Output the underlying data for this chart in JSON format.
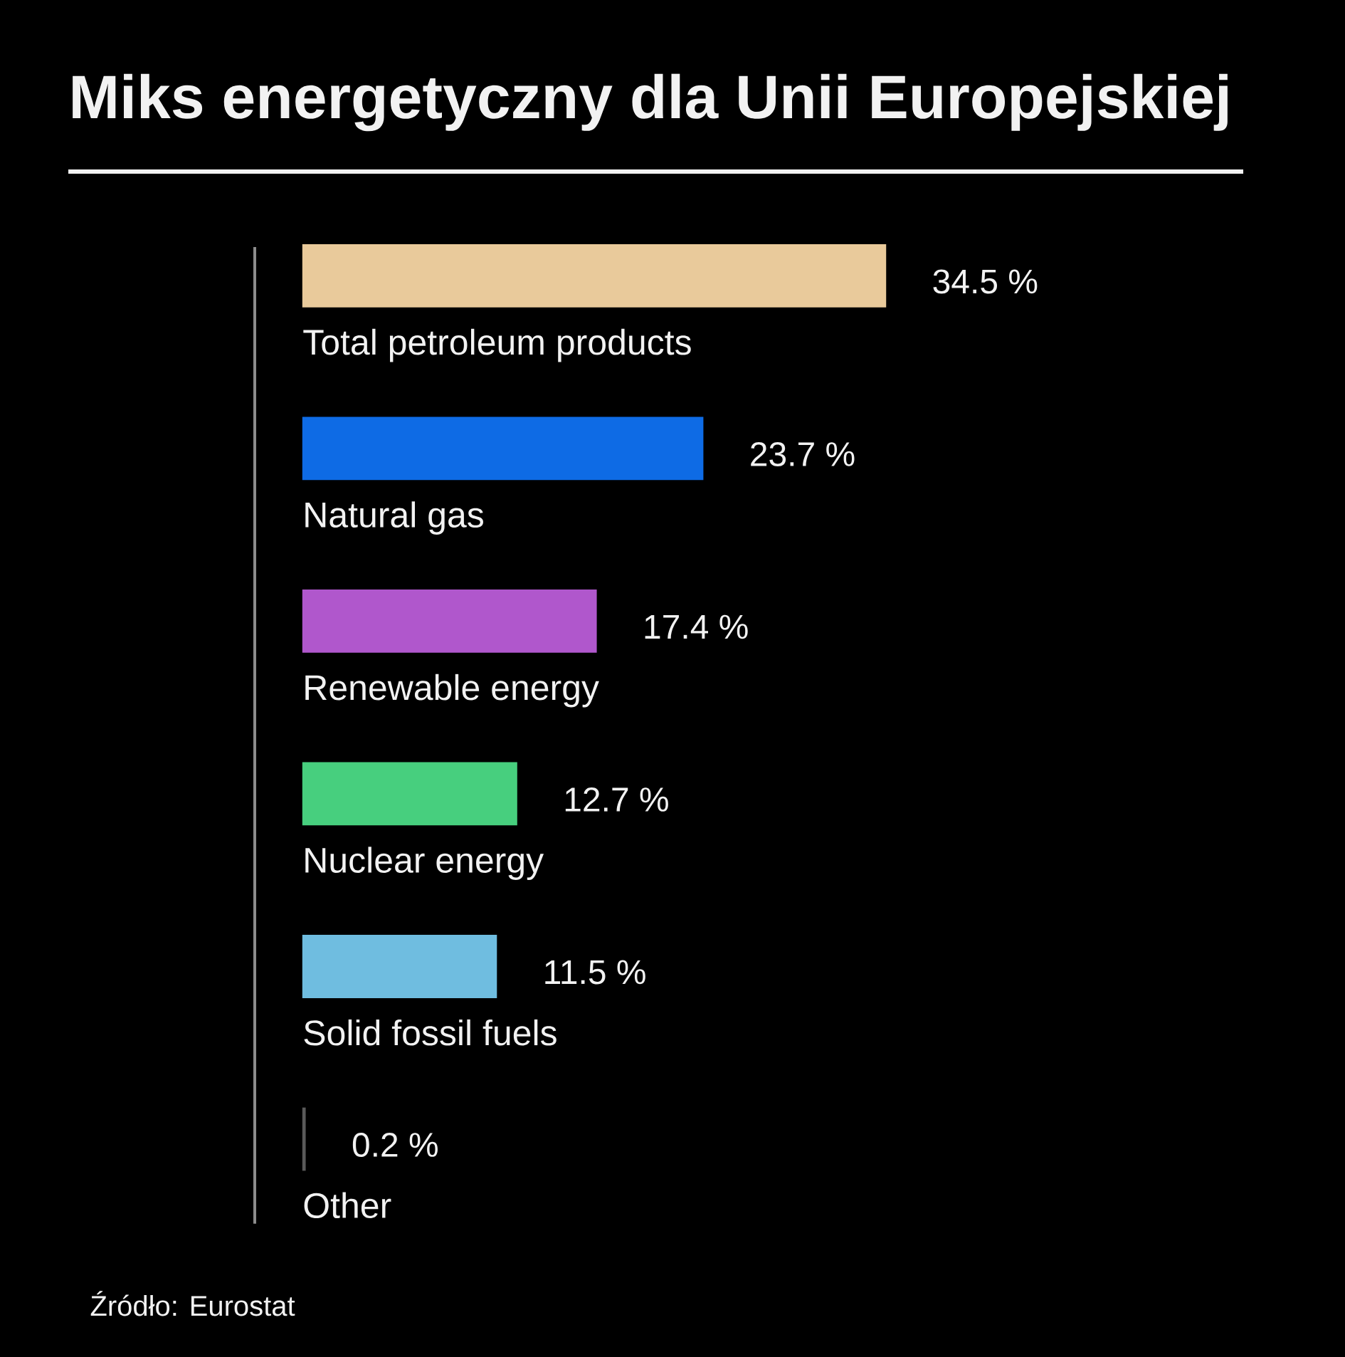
{
  "chart_data": {
    "type": "bar",
    "orientation": "horizontal",
    "title": "Miks energetyczny dla Unii Europejskiej",
    "categories": [
      "Total petroleum products",
      "Natural gas",
      "Renewable energy",
      "Nuclear energy",
      "Solid fossil fuels",
      "Other"
    ],
    "values": [
      34.5,
      23.7,
      17.4,
      12.7,
      11.5,
      0.2
    ],
    "colors": [
      "#e9ca9b",
      "#0e6be5",
      "#b057cc",
      "#47cf7e",
      "#6fbde0",
      "#5a5a5a"
    ],
    "value_labels": [
      "34.5 %",
      "23.7 %",
      "17.4 %",
      "12.7 %",
      "11.5 %",
      "0.2 %"
    ],
    "annotations": [
      "Źródło: Eurostat"
    ]
  }
}
